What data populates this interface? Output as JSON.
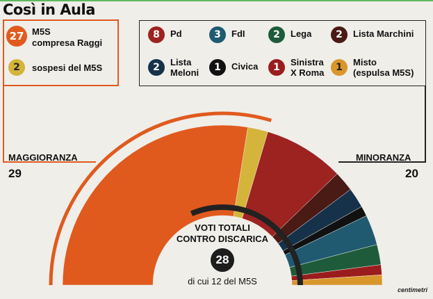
{
  "title": "Così in Aula",
  "majority_group": {
    "label": "MAGGIORANZA",
    "total": "29",
    "items": [
      {
        "count": "27",
        "label_line1": "M5S",
        "label_line2": "compresa Raggi",
        "color": "#e05a1e"
      },
      {
        "count": "2",
        "label_line1": "sospesi del M5S",
        "label_line2": "",
        "color": "#d4b43a"
      }
    ]
  },
  "minority_group": {
    "label": "MINORANZA",
    "total": "20",
    "items": [
      {
        "count": "8",
        "label_line1": "Pd",
        "label_line2": "",
        "color": "#9c2320"
      },
      {
        "count": "3",
        "label_line1": "FdI",
        "label_line2": "",
        "color": "#1f5a70"
      },
      {
        "count": "2",
        "label_line1": "Lega",
        "label_line2": "",
        "color": "#1e5b3a"
      },
      {
        "count": "2",
        "label_line1": "Lista Marchini",
        "label_line2": "",
        "color": "#4a1a14"
      },
      {
        "count": "2",
        "label_line1": "Lista",
        "label_line2": "Meloni",
        "color": "#16324a"
      },
      {
        "count": "1",
        "label_line1": "Civica",
        "label_line2": "",
        "color": "#111111"
      },
      {
        "count": "1",
        "label_line1": "Sinistra",
        "label_line2": "X Roma",
        "color": "#9b1c1c"
      },
      {
        "count": "1",
        "label_line1": "Misto",
        "label_line2": "(espulsa M5S)",
        "color": "#d9962a"
      }
    ]
  },
  "center": {
    "label_line1": "VOTI TOTALI",
    "label_line2": "CONTRO DISCARICA",
    "total": "28",
    "note": "di cui 12 del M5S"
  },
  "credit": "centimetri",
  "chart_data": {
    "type": "pie",
    "variant": "half-donut",
    "total_seats": 49,
    "series": [
      {
        "name": "M5S",
        "value": 27,
        "color": "#e05a1e"
      },
      {
        "name": "sospesi del M5S",
        "value": 2,
        "color": "#d4b43a"
      },
      {
        "name": "Pd",
        "value": 8,
        "color": "#9c2320"
      },
      {
        "name": "Lista Marchini",
        "value": 2,
        "color": "#4a1a14"
      },
      {
        "name": "Lista Meloni",
        "value": 2,
        "color": "#16324a"
      },
      {
        "name": "Civica",
        "value": 1,
        "color": "#111111"
      },
      {
        "name": "FdI",
        "value": 3,
        "color": "#1f5a70"
      },
      {
        "name": "Lega",
        "value": 2,
        "color": "#1e5b3a"
      },
      {
        "name": "Sinistra X Roma",
        "value": 1,
        "color": "#9b1c1c"
      },
      {
        "name": "Misto",
        "value": 1,
        "color": "#d9962a"
      }
    ],
    "votes_against": 28,
    "votes_against_m5s": 12
  }
}
